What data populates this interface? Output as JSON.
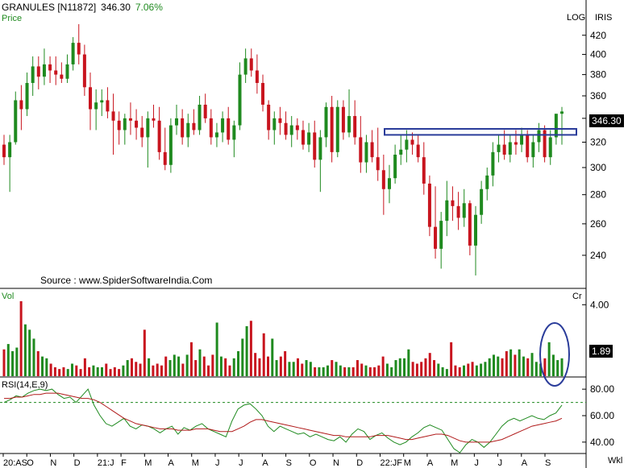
{
  "header": {
    "ticker": "GRANULES [N11872]",
    "price": "346.30",
    "change": "7.06%",
    "price_label": "Price",
    "log_label": "LOG",
    "app_label": "IRIS"
  },
  "source": "Source : www.SpiderSoftwareIndia.Com",
  "volume_panel": {
    "label": "Vol",
    "unit_label": "Cr",
    "current": "1.89"
  },
  "rsi_panel": {
    "label": "RSI(14,E,9)"
  },
  "x_axis_tail": "Wkl",
  "colors": {
    "up": "#1f8a1f",
    "down": "#c8141e",
    "highlight": "#2a3c9a",
    "rsi": "#1f8a1f",
    "signal": "#b01a1a"
  },
  "chart_data": [
    {
      "type": "candlestick",
      "title": "GRANULES [N11872]",
      "ylabel": "Price",
      "scale": "log",
      "ylim": [
        222,
        432
      ],
      "yticks": [
        240,
        260,
        280,
        300,
        320,
        340,
        360,
        380,
        400,
        420
      ],
      "last": 346.3,
      "resistance_zone": [
        326,
        331
      ],
      "x_tick_labels": [
        "20:AS",
        "O",
        "N",
        "D",
        "21:J",
        "F",
        "M",
        "A",
        "M",
        "J",
        "J",
        "A",
        "S",
        "O",
        "N",
        "D",
        "22:JF",
        "M",
        "A",
        "M",
        "J",
        "J",
        "A",
        "S"
      ],
      "candles": [
        [
          318,
          326,
          302,
          308
        ],
        [
          308,
          326,
          282,
          320
        ],
        [
          320,
          364,
          318,
          356
        ],
        [
          356,
          370,
          330,
          348
        ],
        [
          348,
          382,
          342,
          372
        ],
        [
          372,
          398,
          360,
          388
        ],
        [
          388,
          398,
          366,
          378
        ],
        [
          378,
          406,
          370,
          390
        ],
        [
          390,
          398,
          372,
          384
        ],
        [
          384,
          398,
          370,
          380
        ],
        [
          380,
          392,
          372,
          376
        ],
        [
          376,
          400,
          372,
          390
        ],
        [
          390,
          418,
          384,
          412
        ],
        [
          412,
          432,
          390,
          400
        ],
        [
          400,
          410,
          360,
          368
        ],
        [
          368,
          382,
          330,
          348
        ],
        [
          348,
          366,
          330,
          354
        ],
        [
          354,
          366,
          342,
          356
        ],
        [
          356,
          368,
          340,
          346
        ],
        [
          346,
          362,
          310,
          338
        ],
        [
          338,
          346,
          318,
          330
        ],
        [
          330,
          344,
          318,
          340
        ],
        [
          340,
          354,
          326,
          338
        ],
        [
          338,
          348,
          322,
          332
        ],
        [
          332,
          342,
          316,
          324
        ],
        [
          324,
          346,
          300,
          340
        ],
        [
          340,
          352,
          332,
          338
        ],
        [
          338,
          350,
          306,
          312
        ],
        [
          312,
          332,
          298,
          302
        ],
        [
          302,
          340,
          296,
          334
        ],
        [
          334,
          352,
          326,
          340
        ],
        [
          340,
          348,
          318,
          324
        ],
        [
          324,
          344,
          316,
          336
        ],
        [
          336,
          348,
          326,
          330
        ],
        [
          330,
          360,
          326,
          352
        ],
        [
          352,
          362,
          336,
          340
        ],
        [
          340,
          348,
          318,
          324
        ],
        [
          324,
          336,
          316,
          328
        ],
        [
          328,
          346,
          320,
          340
        ],
        [
          340,
          350,
          318,
          322
        ],
        [
          322,
          338,
          308,
          334
        ],
        [
          334,
          392,
          330,
          380
        ],
        [
          380,
          406,
          372,
          396
        ],
        [
          396,
          406,
          378,
          384
        ],
        [
          384,
          400,
          362,
          372
        ],
        [
          372,
          380,
          346,
          352
        ],
        [
          352,
          356,
          322,
          330
        ],
        [
          330,
          346,
          318,
          340
        ],
        [
          340,
          350,
          326,
          336
        ],
        [
          336,
          346,
          322,
          326
        ],
        [
          326,
          342,
          316,
          334
        ],
        [
          334,
          340,
          322,
          330
        ],
        [
          330,
          338,
          314,
          318
        ],
        [
          318,
          336,
          312,
          328
        ],
        [
          328,
          338,
          300,
          306
        ],
        [
          306,
          330,
          282,
          324
        ],
        [
          324,
          354,
          316,
          350
        ],
        [
          350,
          360,
          304,
          312
        ],
        [
          312,
          356,
          308,
          350
        ],
        [
          350,
          356,
          322,
          328
        ],
        [
          328,
          366,
          324,
          342
        ],
        [
          342,
          356,
          318,
          324
        ],
        [
          324,
          342,
          296,
          304
        ],
        [
          304,
          326,
          296,
          320
        ],
        [
          320,
          330,
          304,
          308
        ],
        [
          308,
          332,
          290,
          298
        ],
        [
          298,
          310,
          266,
          284
        ],
        [
          284,
          302,
          274,
          292
        ],
        [
          292,
          318,
          288,
          310
        ],
        [
          310,
          326,
          302,
          314
        ],
        [
          314,
          330,
          304,
          322
        ],
        [
          322,
          328,
          310,
          318
        ],
        [
          318,
          326,
          304,
          308
        ],
        [
          308,
          320,
          280,
          288
        ],
        [
          288,
          294,
          252,
          258
        ],
        [
          258,
          286,
          238,
          244
        ],
        [
          244,
          268,
          232,
          262
        ],
        [
          262,
          290,
          252,
          276
        ],
        [
          276,
          286,
          262,
          272
        ],
        [
          272,
          282,
          256,
          264
        ],
        [
          264,
          284,
          258,
          274
        ],
        [
          274,
          276,
          240,
          246
        ],
        [
          246,
          272,
          228,
          266
        ],
        [
          266,
          290,
          260,
          284
        ],
        [
          284,
          300,
          276,
          294
        ],
        [
          294,
          320,
          286,
          312
        ],
        [
          312,
          326,
          304,
          318
        ],
        [
          318,
          330,
          306,
          310
        ],
        [
          310,
          326,
          304,
          320
        ],
        [
          320,
          330,
          310,
          318
        ],
        [
          318,
          332,
          312,
          326
        ],
        [
          326,
          330,
          304,
          308
        ],
        [
          308,
          326,
          300,
          320
        ],
        [
          320,
          336,
          312,
          330
        ],
        [
          330,
          334,
          304,
          308
        ],
        [
          308,
          330,
          302,
          324
        ],
        [
          324,
          342,
          318,
          344
        ],
        [
          344,
          350,
          318,
          346
        ]
      ]
    },
    {
      "type": "bar",
      "title": "Volume",
      "ylabel": "Cr",
      "yticks": [
        1.89,
        4.0
      ],
      "values": [
        1.5,
        1.8,
        1.4,
        1.6,
        4.2,
        2.9,
        2.6,
        2.1,
        1.4,
        1.1,
        1.0,
        0.7,
        0.5,
        0.4,
        0.5,
        0.4,
        0.7,
        0.6,
        0.4,
        1.0,
        0.5,
        0.6,
        0.5,
        0.5,
        0.7,
        0.4,
        0.5,
        0.4,
        0.6,
        0.9,
        1.0,
        0.8,
        0.7,
        2.6,
        1.0,
        0.6,
        0.7,
        0.6,
        1.1,
        0.9,
        1.2,
        1.1,
        0.7,
        1.2,
        1.9,
        0.9,
        1.5,
        1.1,
        0.6,
        1.2,
        3.0,
        1.1,
        1.0,
        0.6,
        1.0,
        1.4,
        2.1,
        2.8,
        3.1,
        1.3,
        1.0,
        2.4,
        1.1,
        2.1,
        0.9,
        1.1,
        1.4,
        0.8,
        0.8,
        1.0,
        0.7,
        0.9,
        0.8,
        0.5,
        0.5,
        0.5,
        0.6,
        0.9,
        0.8,
        0.6,
        0.5,
        0.5,
        0.5,
        0.9,
        0.7,
        0.6,
        0.5,
        0.5,
        0.6,
        1.1,
        0.7,
        0.5,
        0.9,
        1.0,
        1.0,
        1.5,
        0.8,
        0.7,
        0.8,
        1.0,
        1.3,
        0.9,
        0.7,
        0.5,
        0.4,
        1.9,
        0.6,
        0.5,
        0.6,
        0.7,
        0.8,
        0.6,
        0.7,
        0.8,
        1.0,
        1.2,
        1.1,
        1.0,
        1.4,
        1.5,
        1.2,
        1.5,
        1.1,
        1.0,
        1.3,
        0.8,
        0.7,
        1.0,
        1.9,
        1.2,
        0.9,
        1.0
      ]
    },
    {
      "type": "line",
      "title": "RSI(14,E,9)",
      "ylim": [
        32,
        88
      ],
      "yticks": [
        40.0,
        60.0,
        80.0
      ],
      "reference_line": 70,
      "series": [
        {
          "name": "",
          "values": [
            70,
            72,
            75,
            74,
            77,
            79,
            80,
            79,
            80,
            76,
            73,
            74,
            70,
            75,
            80,
            68,
            60,
            54,
            52,
            55,
            58,
            52,
            50,
            53,
            52,
            50,
            47,
            50,
            52,
            46,
            51,
            49,
            52,
            54,
            50,
            48,
            46,
            44,
            56,
            65,
            68,
            69,
            65,
            60,
            52,
            48,
            52,
            50,
            48,
            46,
            47,
            44,
            46,
            44,
            42,
            41,
            44,
            40,
            46,
            50,
            48,
            42,
            45,
            47,
            43,
            40,
            38,
            40,
            44,
            47,
            51,
            53,
            51,
            49,
            42,
            35,
            32,
            38,
            42,
            40,
            36,
            40,
            46,
            52,
            56,
            58,
            56,
            58,
            60,
            58,
            57,
            60,
            62,
            68
          ]
        },
        {
          "name": "",
          "values": [
            73,
            73,
            74,
            74,
            75,
            76,
            76,
            77,
            77,
            77,
            76,
            75,
            74,
            73,
            73,
            72,
            70,
            67,
            64,
            61,
            58,
            56,
            54,
            53,
            52,
            51,
            50,
            50,
            50,
            49,
            49,
            49,
            50,
            50,
            50,
            49,
            48,
            48,
            48,
            50,
            52,
            55,
            57,
            57,
            56,
            55,
            54,
            53,
            52,
            51,
            50,
            49,
            48,
            47,
            46,
            45,
            45,
            44,
            44,
            44,
            44,
            44,
            45,
            45,
            45,
            44,
            43,
            42,
            42,
            43,
            44,
            45,
            46,
            46,
            45,
            43,
            41,
            40,
            40,
            40,
            40,
            40,
            41,
            42,
            44,
            46,
            48,
            50,
            52,
            53,
            54,
            55,
            56,
            58
          ]
        }
      ]
    }
  ]
}
